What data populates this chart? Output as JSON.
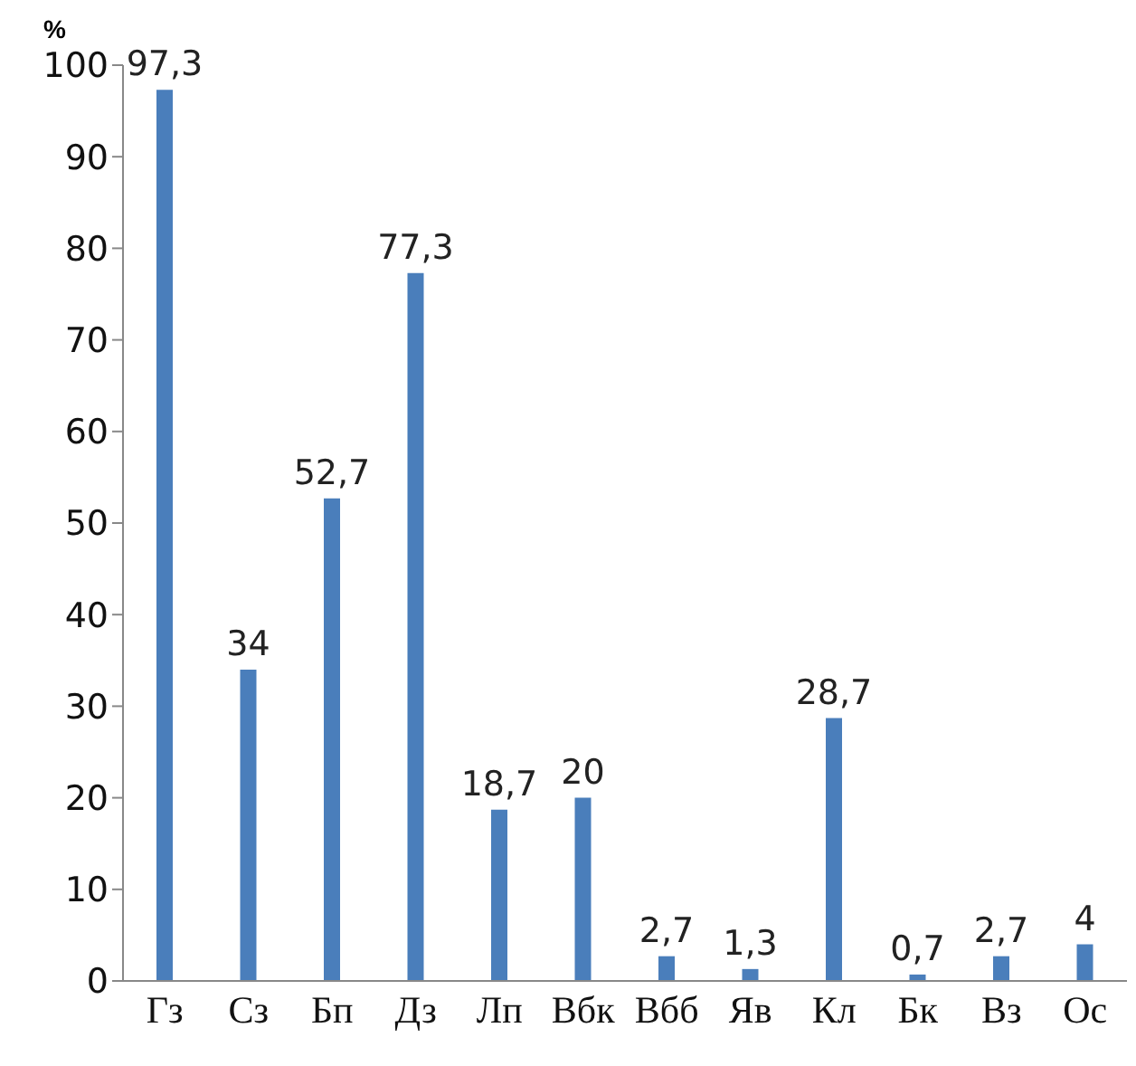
{
  "chart_data": {
    "type": "bar",
    "ylabel": "%",
    "categories": [
      "Гз",
      "Сз",
      "Бп",
      "Дз",
      "Лп",
      "Вбк",
      "Вбб",
      "Яв",
      "Кл",
      "Бк",
      "Вз",
      "Ос"
    ],
    "values": [
      97.3,
      34,
      52.7,
      77.3,
      18.7,
      20,
      2.7,
      1.3,
      28.7,
      0.7,
      2.7,
      4
    ],
    "value_labels": [
      "97,3",
      "34",
      "52,7",
      "77,3",
      "18,7",
      "20",
      "2,7",
      "1,3",
      "28,7",
      "0,7",
      "2,7",
      "4"
    ],
    "color": "#4a7ebb",
    "ylim": [
      0,
      100
    ],
    "yticks": [
      0,
      10,
      20,
      30,
      40,
      50,
      60,
      70,
      80,
      90,
      100
    ],
    "grid": false
  }
}
